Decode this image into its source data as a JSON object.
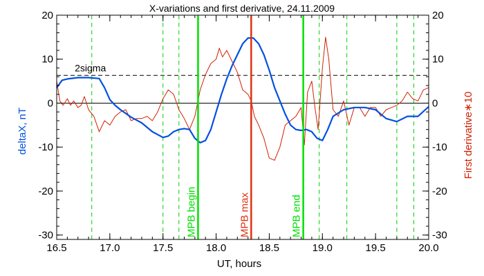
{
  "chart_data": {
    "type": "line",
    "title": "X-variations and first derivative, 24.11.2009",
    "xlabel": "UT, hours",
    "ylabel_left": "deltaX, nT",
    "ylabel_right": "First derivative∗10",
    "xlim": [
      16.5,
      20.0
    ],
    "ylim_left": [
      -31,
      20
    ],
    "ylim_right": [
      -31,
      20
    ],
    "x_ticks": [
      "16.5",
      "17.0",
      "17.5",
      "18.0",
      "18.5",
      "19.0",
      "19.5",
      "20.0"
    ],
    "y_ticks": [
      "20",
      "10",
      "0",
      "-10",
      "-20",
      "-30"
    ],
    "y_ticks_right": [
      "20",
      "10",
      "0",
      "-10",
      "-20",
      "-30"
    ],
    "two_sigma": {
      "label": "2sigma",
      "value": 6.3
    },
    "zero_line": 0,
    "dashed_green_lines": [
      16.83,
      17.5,
      17.65,
      18.97,
      19.23,
      19.7,
      19.86
    ],
    "markers": [
      {
        "label": "MPB begin",
        "x": 17.83,
        "color": "#00e000"
      },
      {
        "label": "MPB max",
        "x": 18.33,
        "color": "#e03010"
      },
      {
        "label": "MPB end",
        "x": 18.82,
        "color": "#00e000"
      }
    ],
    "series": [
      {
        "name": "deltaX, nT",
        "color": "#0050e0",
        "x": [
          16.5,
          16.55,
          16.6,
          16.7,
          16.8,
          16.9,
          16.95,
          17.0,
          17.05,
          17.1,
          17.2,
          17.3,
          17.4,
          17.5,
          17.55,
          17.6,
          17.65,
          17.7,
          17.75,
          17.8,
          17.85,
          17.9,
          17.95,
          18.0,
          18.05,
          18.1,
          18.15,
          18.2,
          18.25,
          18.3,
          18.35,
          18.4,
          18.45,
          18.5,
          18.55,
          18.6,
          18.65,
          18.7,
          18.75,
          18.8,
          18.85,
          18.9,
          18.95,
          19.0,
          19.05,
          19.1,
          19.2,
          19.3,
          19.4,
          19.5,
          19.6,
          19.7,
          19.8,
          19.9,
          20.0
        ],
        "y": [
          3.5,
          5.2,
          5.5,
          5.8,
          5.8,
          5.6,
          3.5,
          0.8,
          -0.5,
          -1.5,
          -3.2,
          -4.5,
          -6.5,
          -7.8,
          -7.5,
          -6.5,
          -6.0,
          -5.8,
          -6.0,
          -8.0,
          -9.0,
          -8.5,
          -6.0,
          -2.0,
          2.0,
          5.5,
          8.5,
          11.0,
          13.5,
          14.8,
          14.8,
          13.5,
          11.0,
          7.5,
          3.5,
          0.5,
          -2.5,
          -5.0,
          -6.0,
          -6.2,
          -6.0,
          -6.5,
          -8.0,
          -8.5,
          -6.0,
          -3.0,
          -1.5,
          -1.0,
          -1.0,
          -1.5,
          -3.5,
          -4.2,
          -3.0,
          -3.0,
          -0.8
        ]
      },
      {
        "name": "First derivative∗10",
        "color": "#d02000",
        "x": [
          16.5,
          16.53,
          16.56,
          16.6,
          16.63,
          16.66,
          16.7,
          16.73,
          16.76,
          16.8,
          16.85,
          16.9,
          16.95,
          17.0,
          17.05,
          17.1,
          17.15,
          17.2,
          17.25,
          17.3,
          17.35,
          17.4,
          17.45,
          17.5,
          17.55,
          17.6,
          17.65,
          17.7,
          17.75,
          17.8,
          17.85,
          17.9,
          17.95,
          18.0,
          18.03,
          18.06,
          18.1,
          18.15,
          18.2,
          18.25,
          18.3,
          18.33,
          18.36,
          18.4,
          18.45,
          18.5,
          18.55,
          18.6,
          18.65,
          18.7,
          18.75,
          18.8,
          18.83,
          18.86,
          18.9,
          18.93,
          18.96,
          19.0,
          19.03,
          19.06,
          19.1,
          19.15,
          19.2,
          19.25,
          19.3,
          19.35,
          19.4,
          19.45,
          19.5,
          19.55,
          19.6,
          19.65,
          19.7,
          19.75,
          19.8,
          19.85,
          19.9,
          19.95,
          20.0
        ],
        "y": [
          5.0,
          0.5,
          -0.5,
          1.0,
          -0.5,
          0.5,
          -1.0,
          -0.5,
          1.5,
          -1.5,
          -3.0,
          -6.5,
          -4.0,
          -5.0,
          -3.0,
          -2.0,
          -1.5,
          -4.0,
          -3.5,
          -3.5,
          -3.0,
          -4.0,
          -2.0,
          1.0,
          3.0,
          2.0,
          -1.5,
          -3.5,
          -6.0,
          -3.0,
          3.0,
          6.5,
          9.0,
          10.0,
          12.5,
          10.5,
          12.0,
          9.5,
          7.0,
          3.0,
          2.0,
          0.5,
          -3.0,
          -5.0,
          -8.0,
          -12.5,
          -13.0,
          -10.0,
          -5.0,
          -4.0,
          -3.0,
          -1.0,
          -9.5,
          2.5,
          5.0,
          -1.0,
          -6.0,
          8.0,
          15.0,
          10.0,
          -1.5,
          -3.0,
          0.5,
          -5.0,
          -1.0,
          -1.0,
          -3.0,
          -1.0,
          -1.0,
          -3.0,
          -1.5,
          -1.0,
          -0.5,
          0.5,
          2.5,
          1.0,
          0.5,
          3.0,
          3.5
        ]
      }
    ]
  }
}
